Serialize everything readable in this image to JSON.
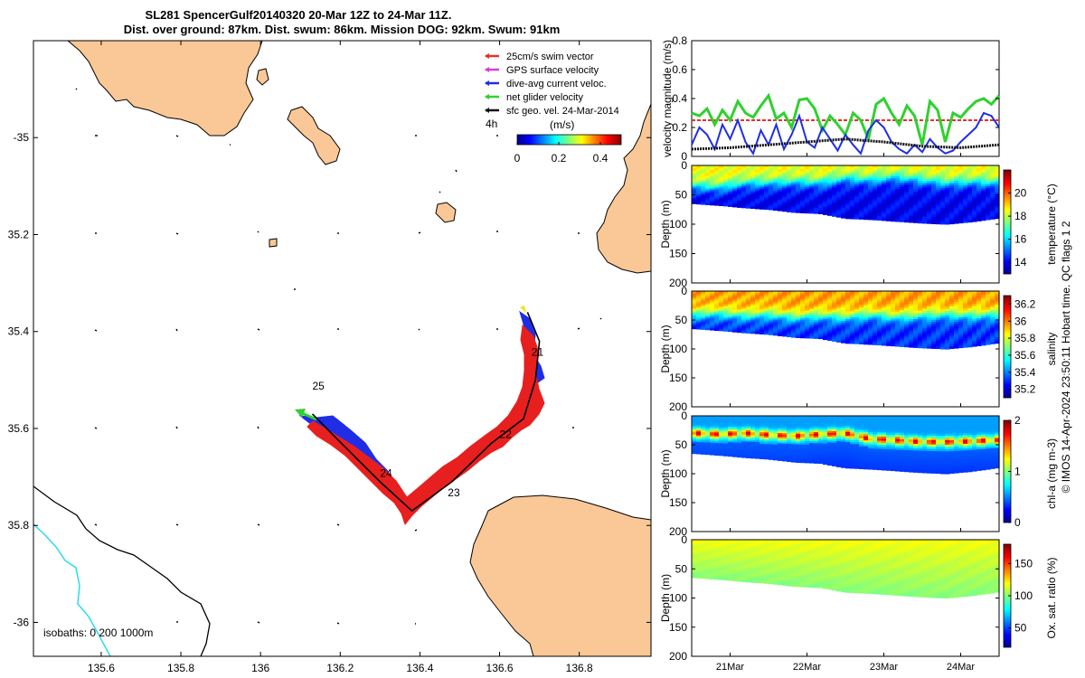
{
  "title": {
    "line1": "SL281 SpencerGulf20140320 20-Mar 12Z to 24-Mar 11Z.",
    "line2": "Dist. over ground: 87km. Dist. swum: 86km. Mission DOG: 92km. Swum: 91km"
  },
  "chart_data": [
    {
      "type": "map",
      "xticks": [
        "135.6",
        "135.8",
        "136",
        "136.2",
        "136.4",
        "136.6",
        "136.8"
      ],
      "xtick_values": [
        135.6,
        135.8,
        136.0,
        136.2,
        136.4,
        136.6,
        136.8
      ],
      "yticks": [
        "-35",
        "35.2",
        "35.4",
        "35.6",
        "35.8",
        "-36"
      ],
      "ytick_values": [
        -35.0,
        -35.2,
        -35.4,
        -35.6,
        -35.8,
        -36.0
      ],
      "xlim": [
        135.43,
        136.98
      ],
      "ylim": [
        -36.07,
        -34.8
      ],
      "legend": [
        {
          "label": "25cm/s swim vector",
          "color": "#e8302a"
        },
        {
          "label": "GPS surface velocity",
          "color": "#d93cd9"
        },
        {
          "label": "dive-avg current veloc.",
          "color": "#1f2ee6"
        },
        {
          "label": "net glider velocity",
          "color": "#2fd12f"
        },
        {
          "label": "sfc geo. vel. 24-Mar-2014",
          "color": "#111111"
        }
      ],
      "time_step_label": "4h",
      "colorbar": {
        "label": "(m/s)",
        "ticks": [
          "0",
          "0.2",
          "0.4"
        ],
        "tick_values": [
          0,
          0.2,
          0.4
        ],
        "range": [
          0,
          0.5
        ]
      },
      "day_labels": [
        {
          "label": "21",
          "lon": 136.68,
          "lat": -35.45
        },
        {
          "label": "22",
          "lon": 136.6,
          "lat": -35.62
        },
        {
          "label": "23",
          "lon": 136.47,
          "lat": -35.74
        },
        {
          "label": "24",
          "lon": 136.3,
          "lat": -35.7
        },
        {
          "label": "25",
          "lon": 136.13,
          "lat": -35.52
        }
      ],
      "track": [
        {
          "lon": 136.67,
          "lat": -35.36
        },
        {
          "lon": 136.7,
          "lat": -35.42
        },
        {
          "lon": 136.69,
          "lat": -35.5
        },
        {
          "lon": 136.66,
          "lat": -35.58
        },
        {
          "lon": 136.58,
          "lat": -35.63
        },
        {
          "lon": 136.48,
          "lat": -35.71
        },
        {
          "lon": 136.38,
          "lat": -35.77
        },
        {
          "lon": 136.3,
          "lat": -35.71
        },
        {
          "lon": 136.19,
          "lat": -35.62
        },
        {
          "lon": 136.13,
          "lat": -35.57
        }
      ],
      "isobaths_label": "isobaths: 0   200  1000m"
    },
    {
      "type": "line",
      "ylabel": "velocity magnitude (m/s)",
      "ylim": [
        0,
        0.8
      ],
      "yticks": [
        "0",
        "0.2",
        "0.4",
        "0.6",
        "0.8"
      ],
      "ytick_values": [
        0,
        0.2,
        0.4,
        0.6,
        0.8
      ],
      "xlim": [
        0,
        4.0
      ],
      "series": [
        {
          "name": "25cm/s swim vector",
          "color": "#e8302a",
          "x": [
            0,
            4.0
          ],
          "y": [
            0.25,
            0.25
          ]
        },
        {
          "name": "net glider velocity",
          "color": "#2fd12f",
          "x": [
            0.0,
            0.1,
            0.2,
            0.3,
            0.4,
            0.5,
            0.6,
            0.7,
            0.8,
            0.9,
            1.0,
            1.1,
            1.2,
            1.3,
            1.4,
            1.5,
            1.6,
            1.7,
            1.8,
            1.9,
            2.0,
            2.1,
            2.2,
            2.3,
            2.4,
            2.5,
            2.6,
            2.7,
            2.8,
            2.9,
            3.0,
            3.1,
            3.2,
            3.3,
            3.4,
            3.5,
            3.6,
            3.7,
            3.8,
            3.9,
            4.0
          ],
          "y": [
            0.3,
            0.28,
            0.33,
            0.22,
            0.32,
            0.25,
            0.38,
            0.3,
            0.27,
            0.35,
            0.42,
            0.26,
            0.3,
            0.2,
            0.39,
            0.4,
            0.33,
            0.18,
            0.28,
            0.22,
            0.15,
            0.3,
            0.25,
            0.12,
            0.36,
            0.4,
            0.3,
            0.22,
            0.35,
            0.28,
            0.08,
            0.38,
            0.32,
            0.1,
            0.3,
            0.27,
            0.33,
            0.38,
            0.4,
            0.36,
            0.42
          ]
        },
        {
          "name": "dive-avg current veloc.",
          "color": "#1f2ee6",
          "x": [
            0.0,
            0.1,
            0.2,
            0.3,
            0.4,
            0.5,
            0.6,
            0.7,
            0.8,
            0.9,
            1.0,
            1.1,
            1.2,
            1.3,
            1.4,
            1.5,
            1.6,
            1.7,
            1.8,
            1.9,
            2.0,
            2.1,
            2.2,
            2.3,
            2.4,
            2.5,
            2.6,
            2.7,
            2.8,
            2.9,
            3.0,
            3.1,
            3.2,
            3.3,
            3.4,
            3.5,
            3.6,
            3.7,
            3.8,
            3.9,
            4.0
          ],
          "y": [
            0.08,
            0.2,
            0.15,
            0.05,
            0.22,
            0.12,
            0.25,
            0.1,
            0.02,
            0.18,
            0.08,
            0.22,
            0.05,
            0.15,
            0.28,
            0.1,
            0.06,
            0.2,
            0.12,
            0.04,
            0.15,
            0.08,
            0.02,
            0.18,
            0.25,
            0.2,
            0.1,
            0.05,
            0.02,
            0.08,
            0.03,
            0.12,
            0.06,
            0.02,
            0.04,
            0.1,
            0.15,
            0.2,
            0.3,
            0.28,
            0.2
          ]
        },
        {
          "name": "sfc geo. vel. 24-Mar-2014",
          "color": "#111111",
          "x": [
            0.0,
            0.5,
            1.0,
            1.5,
            2.0,
            2.5,
            3.0,
            3.5,
            4.0
          ],
          "y": [
            0.05,
            0.06,
            0.08,
            0.1,
            0.12,
            0.1,
            0.07,
            0.06,
            0.08
          ]
        }
      ]
    },
    {
      "type": "heatmap",
      "ylabel": "Depth (m)",
      "colorbar_label": "temperature (°C)",
      "colorbar_ticks": [
        "14",
        "16",
        "18",
        "20"
      ],
      "colorbar_tick_values": [
        14,
        16,
        18,
        20
      ],
      "crange": [
        13,
        22
      ],
      "yticks": [
        "0",
        "50",
        "100",
        "150",
        "200"
      ],
      "ytick_values": [
        0,
        50,
        100,
        150,
        200
      ],
      "surface_value": 18.5,
      "bottom_value": 14.0,
      "thermocline_depth": [
        35,
        38,
        30,
        30,
        28,
        30,
        22,
        25,
        20,
        25,
        30,
        28,
        30
      ],
      "bottom_depth": [
        65,
        68,
        72,
        75,
        80,
        82,
        90,
        92,
        95,
        98,
        100,
        96,
        90
      ]
    },
    {
      "type": "heatmap",
      "ylabel": "Depth (m)",
      "colorbar_label": "salinity",
      "colorbar_ticks": [
        "35.2",
        "35.4",
        "35.6",
        "35.8",
        "36",
        "36.2"
      ],
      "colorbar_tick_values": [
        35.2,
        35.4,
        35.6,
        35.8,
        36.0,
        36.2
      ],
      "crange": [
        35.1,
        36.3
      ],
      "yticks": [
        "0",
        "50",
        "100",
        "150",
        "200"
      ],
      "ytick_values": [
        0,
        50,
        100,
        150,
        200
      ],
      "surface_value": 35.95,
      "bottom_value": 35.3,
      "thermocline_depth": [
        40,
        38,
        42,
        40,
        45,
        42,
        45,
        40,
        45,
        42,
        40,
        42,
        40
      ],
      "bottom_depth": [
        65,
        68,
        72,
        75,
        80,
        82,
        90,
        92,
        95,
        98,
        100,
        96,
        90
      ]
    },
    {
      "type": "heatmap",
      "ylabel": "Depth (m)",
      "colorbar_label": "chl-a (mg m-3)",
      "colorbar_ticks": [
        "0",
        "1",
        "2"
      ],
      "colorbar_tick_values": [
        0,
        1,
        2
      ],
      "crange": [
        0,
        2
      ],
      "yticks": [
        "0",
        "50",
        "100",
        "150",
        "200"
      ],
      "ytick_values": [
        0,
        50,
        100,
        150,
        200
      ],
      "surface_value": 0.55,
      "bottom_value": 0.45,
      "max_depth": [
        30,
        32,
        30,
        33,
        35,
        32,
        30,
        40,
        42,
        45,
        45,
        44,
        42
      ],
      "bottom_depth": [
        65,
        68,
        72,
        75,
        80,
        82,
        90,
        92,
        95,
        98,
        100,
        96,
        90
      ]
    },
    {
      "type": "heatmap",
      "ylabel": "Depth (m)",
      "colorbar_label": "Ox. sat. ratio (%)",
      "colorbar_ticks": [
        "50",
        "100",
        "150"
      ],
      "colorbar_tick_values": [
        50,
        100,
        150
      ],
      "crange": [
        20,
        180
      ],
      "yticks": [
        "0",
        "50",
        "100",
        "150",
        "200"
      ],
      "ytick_values": [
        0,
        50,
        100,
        150,
        200
      ],
      "surface_value": 118,
      "bottom_value": 100,
      "bottom_depth": [
        65,
        68,
        72,
        75,
        80,
        82,
        90,
        92,
        95,
        98,
        100,
        96,
        90
      ]
    }
  ],
  "time_axis": {
    "labels": [
      "21Mar",
      "22Mar",
      "23Mar",
      "24Mar"
    ],
    "values": [
      0.5,
      1.5,
      2.5,
      3.5
    ]
  },
  "footer": "© IMOS 14-Apr-2024 23:50:11 Hobart time. QC flags 1  2"
}
